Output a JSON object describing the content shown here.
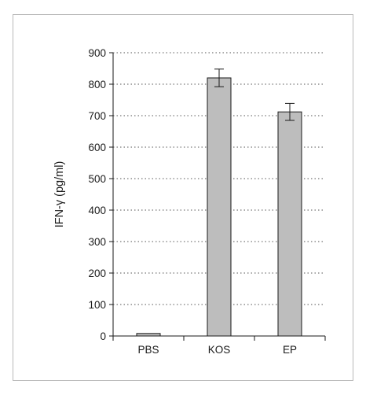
{
  "chart_data": {
    "type": "bar",
    "title": "",
    "xlabel": "",
    "ylabel": "IFN-γ (pg/ml)",
    "categories": [
      "PBS",
      "KOS",
      "EP"
    ],
    "values": [
      8,
      820,
      712
    ],
    "error": [
      0,
      28,
      27
    ],
    "ylim": [
      0,
      900
    ],
    "yticks": [
      0,
      100,
      200,
      300,
      400,
      500,
      600,
      700,
      800,
      900
    ],
    "grid": "horizontal dotted",
    "legend": "none",
    "bar_color": "#bdbdbd",
    "bar_edge_color": "#1a1a1a"
  }
}
